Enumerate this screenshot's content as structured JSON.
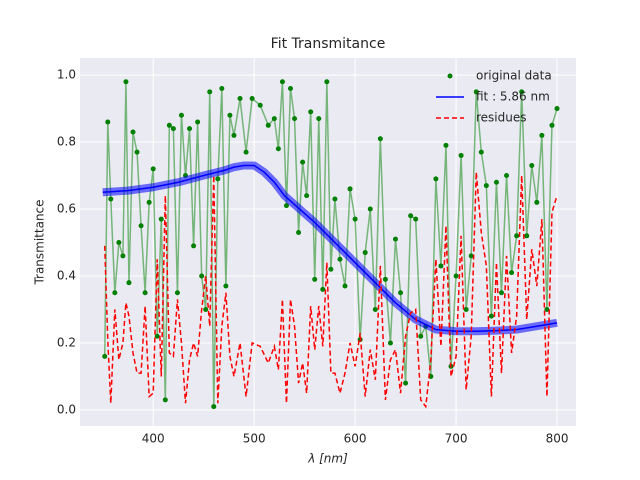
{
  "chart_data": {
    "type": "line",
    "title": "Fit Transmitance",
    "x_label": "λ [nm]",
    "y_label": "Transmittance",
    "xlim": [
      327.5,
      818.8
    ],
    "ylim": [
      -0.048,
      1.051
    ],
    "xticks": [
      400,
      500,
      600,
      700,
      800
    ],
    "yticks": [
      {
        "value": 0,
        "label": "0.0"
      },
      0.2,
      0.4,
      0.6,
      0.8,
      {
        "value": 1,
        "label": "1.0"
      }
    ],
    "grid": true,
    "legend": "upper right",
    "series": [
      {
        "name": "original data",
        "color": "#008000",
        "style": "dots",
        "x": [
          352,
          355,
          358,
          362,
          366,
          370,
          373,
          376,
          380,
          384,
          388,
          392,
          396,
          400,
          404,
          408,
          412,
          416,
          420,
          424,
          428,
          432,
          436,
          440,
          444,
          448,
          452,
          456,
          460,
          464,
          468,
          472,
          476,
          480,
          486,
          492,
          498,
          506,
          514,
          520,
          524,
          528,
          532,
          536,
          540,
          544,
          548,
          552,
          556,
          560,
          564,
          568,
          572,
          576,
          580,
          585,
          590,
          595,
          600,
          605,
          610,
          615,
          620,
          625,
          630,
          635,
          640,
          645,
          650,
          655,
          660,
          665,
          670,
          675,
          680,
          685,
          690,
          695,
          700,
          705,
          710,
          715,
          720,
          725,
          730,
          735,
          740,
          745,
          750,
          755,
          760,
          765,
          770,
          775,
          780,
          785,
          790,
          795,
          800
        ],
        "values": [
          0.16,
          0.86,
          0.63,
          0.35,
          0.5,
          0.46,
          0.98,
          0.38,
          0.83,
          0.77,
          0.55,
          0.35,
          0.62,
          0.72,
          0.22,
          0.57,
          0.03,
          0.85,
          0.84,
          0.35,
          0.88,
          0.7,
          0.84,
          0.49,
          0.86,
          0.4,
          0.3,
          0.95,
          0.01,
          0.69,
          0.96,
          0.37,
          0.88,
          0.82,
          0.93,
          0.77,
          0.93,
          0.91,
          0.85,
          0.87,
          0.78,
          0.98,
          0.61,
          0.96,
          0.87,
          0.53,
          0.74,
          0.64,
          0.89,
          0.39,
          0.87,
          0.36,
          0.98,
          0.42,
          0.63,
          0.45,
          0.37,
          0.66,
          0.57,
          0.21,
          0.47,
          0.6,
          0.3,
          0.81,
          0.39,
          0.2,
          0.51,
          0.35,
          0.08,
          0.58,
          0.57,
          0.22,
          0.25,
          0.1,
          0.69,
          0.43,
          0.79,
          0.13,
          0.4,
          0.76,
          0.3,
          0.46,
          0.95,
          0.77,
          0.67,
          0.28,
          0.68,
          0.35,
          0.7,
          0.41,
          0.52,
          0.95,
          0.52,
          0.73,
          0.62,
          0.82,
          0.3,
          0.85,
          0.9
        ]
      },
      {
        "name": "fit : 5.86 nm",
        "color": "#0000ff",
        "style": "fit",
        "x": [
          350,
          375,
          400,
          425,
          450,
          470,
          480,
          490,
          500,
          510,
          520,
          530,
          545,
          560,
          580,
          600,
          620,
          640,
          660,
          680,
          700,
          720,
          740,
          760,
          780,
          800
        ],
        "values": [
          0.65,
          0.655,
          0.665,
          0.68,
          0.7,
          0.715,
          0.725,
          0.73,
          0.73,
          0.71,
          0.68,
          0.64,
          0.6,
          0.56,
          0.5,
          0.44,
          0.38,
          0.32,
          0.27,
          0.24,
          0.235,
          0.235,
          0.237,
          0.24,
          0.25,
          0.26
        ]
      },
      {
        "name": "residues",
        "color": "#ff0000",
        "style": "dashed",
        "x": [
          352,
          355,
          358,
          362,
          366,
          370,
          373,
          376,
          380,
          384,
          388,
          392,
          396,
          400,
          404,
          408,
          412,
          416,
          420,
          424,
          428,
          432,
          436,
          440,
          444,
          448,
          452,
          456,
          460,
          464,
          468,
          472,
          476,
          480,
          486,
          492,
          498,
          506,
          514,
          520,
          524,
          528,
          532,
          536,
          540,
          544,
          548,
          552,
          556,
          560,
          564,
          568,
          572,
          576,
          580,
          585,
          590,
          595,
          600,
          605,
          610,
          615,
          620,
          625,
          630,
          635,
          640,
          645,
          650,
          655,
          660,
          665,
          670,
          675,
          680,
          685,
          690,
          695,
          700,
          705,
          710,
          715,
          720,
          725,
          730,
          735,
          740,
          745,
          750,
          755,
          760,
          765,
          770,
          775,
          780,
          785,
          790,
          795,
          800
        ],
        "values": [
          0.49,
          0.21,
          0.02,
          0.3,
          0.15,
          0.2,
          0.32,
          0.28,
          0.17,
          0.11,
          0.11,
          0.31,
          0.04,
          0.05,
          0.45,
          0.1,
          0.64,
          0.17,
          0.16,
          0.33,
          0.2,
          0.02,
          0.15,
          0.2,
          0.16,
          0.3,
          0.4,
          0.25,
          0.7,
          0.02,
          0.25,
          0.35,
          0.16,
          0.1,
          0.2,
          0.04,
          0.2,
          0.19,
          0.14,
          0.19,
          0.12,
          0.33,
          0.02,
          0.33,
          0.25,
          0.08,
          0.14,
          0.05,
          0.31,
          0.18,
          0.31,
          0.19,
          0.44,
          0.11,
          0.11,
          0.05,
          0.11,
          0.2,
          0.13,
          0.23,
          0.04,
          0.18,
          0.09,
          0.43,
          0.03,
          0.15,
          0.18,
          0.05,
          0.22,
          0.29,
          0.3,
          0.03,
          0.01,
          0.15,
          0.45,
          0.19,
          0.55,
          0.1,
          0.16,
          0.52,
          0.06,
          0.22,
          0.71,
          0.53,
          0.43,
          0.04,
          0.44,
          0.11,
          0.46,
          0.17,
          0.28,
          0.7,
          0.27,
          0.48,
          0.37,
          0.57,
          0.04,
          0.59,
          0.64
        ]
      }
    ]
  }
}
